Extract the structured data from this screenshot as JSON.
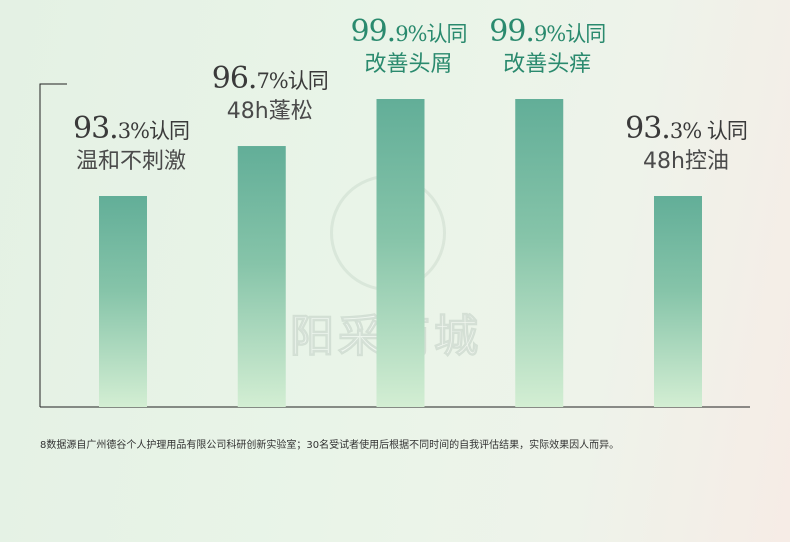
{
  "chart_data": {
    "type": "bar",
    "categories": [
      "温和不刺激",
      "48h蓬松",
      "改善头屑",
      "改善头痒",
      "48h控油"
    ],
    "values": [
      93.3,
      96.7,
      99.9,
      99.9,
      93.3
    ],
    "labels": [
      {
        "int": "93.",
        "dec": "3%",
        "suffix": "认同",
        "sub": "温和不刺激",
        "highlight": false
      },
      {
        "int": "96.",
        "dec": "7%",
        "suffix": "认同",
        "sub": "48h蓬松",
        "highlight": false
      },
      {
        "int": "99.",
        "dec": "9%",
        "suffix": "认同",
        "sub": "改善头屑",
        "highlight": true
      },
      {
        "int": "99.",
        "dec": "9%",
        "suffix": "认同",
        "sub": "改善头痒",
        "highlight": true
      },
      {
        "int": "93.",
        "dec": "3%",
        "suffix": " 认同",
        "sub": "48h控油",
        "highlight": false
      }
    ],
    "ylim": [
      85,
      100
    ],
    "grid": false,
    "colors": {
      "bar_top": "#62ae98",
      "bar_bottom": "#d3eed3",
      "highlight_text": "#2a8a6e",
      "axis": "#222222"
    }
  },
  "footnote": "8数据源自广州德谷个人护理用品有限公司科研创新实验室；30名受试者使用后根据不同时间的自我评估结果，实际效果因人而异。",
  "watermark": "阳采商城"
}
